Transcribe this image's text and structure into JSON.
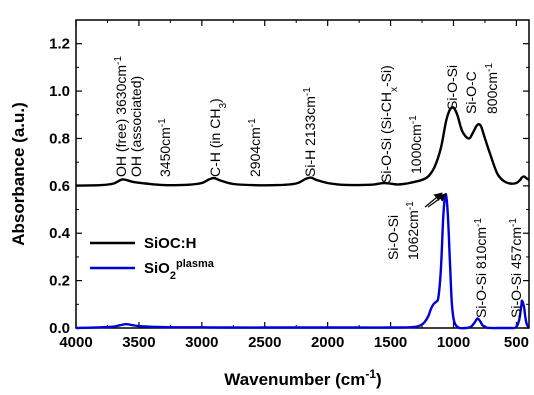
{
  "chart_data": {
    "type": "line",
    "title": "",
    "xlabel": "Wavenumber (cm",
    "xlabel_sup": "-1",
    "xlabel_end": ")",
    "ylabel": "Absorbance (a.u.)",
    "xlim": [
      4000,
      400
    ],
    "ylim": [
      0,
      1.3
    ],
    "x_ticks": [
      4000,
      3500,
      3000,
      2500,
      2000,
      1500,
      1000,
      500
    ],
    "y_ticks": [
      0.0,
      0.2,
      0.4,
      0.6,
      0.8,
      1.0,
      1.2
    ],
    "x_tick_labels": [
      "4000",
      "3500",
      "3000",
      "2500",
      "2000",
      "1500",
      "1000",
      "500"
    ],
    "y_tick_labels": [
      "0.0",
      "0.2",
      "0.4",
      "0.6",
      "0.8",
      "1.0",
      "1.2"
    ],
    "legend_position": "left",
    "series": [
      {
        "name": "SiOC:H",
        "name_sub": "",
        "name_sup": "",
        "color": "#000000",
        "x": [
          4000,
          3800,
          3700,
          3630,
          3550,
          3450,
          3300,
          3100,
          3000,
          2950,
          2904,
          2850,
          2750,
          2600,
          2400,
          2250,
          2180,
          2133,
          2090,
          2000,
          1900,
          1800,
          1650,
          1550,
          1450,
          1400,
          1350,
          1300,
          1250,
          1200,
          1150,
          1100,
          1060,
          1030,
          1000,
          970,
          930,
          880,
          850,
          820,
          800,
          780,
          750,
          700,
          650,
          600,
          550,
          500,
          470,
          457,
          440,
          420,
          400
        ],
        "y": [
          0.601,
          0.603,
          0.61,
          0.627,
          0.617,
          0.61,
          0.603,
          0.605,
          0.612,
          0.625,
          0.633,
          0.622,
          0.608,
          0.603,
          0.603,
          0.61,
          0.628,
          0.635,
          0.625,
          0.612,
          0.605,
          0.603,
          0.605,
          0.612,
          0.606,
          0.608,
          0.612,
          0.618,
          0.625,
          0.64,
          0.68,
          0.76,
          0.87,
          0.92,
          0.93,
          0.9,
          0.83,
          0.8,
          0.82,
          0.85,
          0.86,
          0.85,
          0.8,
          0.72,
          0.65,
          0.62,
          0.61,
          0.612,
          0.625,
          0.635,
          0.64,
          0.632,
          0.625
        ]
      },
      {
        "name": "SiO",
        "name_sub": "2",
        "name_sup": "plasma",
        "color": "#0000dd",
        "x": [
          4000,
          3800,
          3700,
          3650,
          3600,
          3550,
          3500,
          3400,
          3200,
          3000,
          2800,
          2500,
          2200,
          2000,
          1800,
          1500,
          1350,
          1300,
          1260,
          1230,
          1200,
          1180,
          1160,
          1140,
          1120,
          1100,
          1080,
          1062,
          1045,
          1030,
          1015,
          1000,
          980,
          950,
          900,
          860,
          830,
          810,
          790,
          770,
          740,
          700,
          650,
          600,
          550,
          520,
          500,
          480,
          470,
          460,
          457,
          450,
          440,
          430,
          420,
          410,
          400
        ],
        "y": [
          0.0,
          0.003,
          0.006,
          0.012,
          0.016,
          0.012,
          0.008,
          0.005,
          0.003,
          0.003,
          0.002,
          0.002,
          0.002,
          0.002,
          0.002,
          0.002,
          0.003,
          0.005,
          0.012,
          0.025,
          0.05,
          0.08,
          0.1,
          0.11,
          0.13,
          0.25,
          0.48,
          0.565,
          0.48,
          0.3,
          0.12,
          0.04,
          0.01,
          0.0,
          0.0,
          0.006,
          0.025,
          0.04,
          0.03,
          0.012,
          0.002,
          0.0,
          0.0,
          0.0,
          0.0,
          0.0,
          0.005,
          0.03,
          0.06,
          0.1,
          0.115,
          0.11,
          0.09,
          0.05,
          0.02,
          0.008,
          0.005
        ]
      }
    ],
    "annotations": [
      {
        "id": "oh-free",
        "parts": [
          [
            "",
            "OH (free) 3630cm"
          ],
          [
            "sup",
            "-1"
          ]
        ]
      },
      {
        "id": "oh-assoc",
        "parts": [
          [
            "",
            "OH (associated)"
          ]
        ]
      },
      {
        "id": "oh-3450",
        "parts": [
          [
            "",
            "3450cm"
          ],
          [
            "sup",
            "-1"
          ]
        ]
      },
      {
        "id": "ch",
        "parts": [
          [
            "",
            "C-H (in CH"
          ],
          [
            "sub",
            "3"
          ],
          [
            "",
            ")"
          ]
        ]
      },
      {
        "id": "ch-2904",
        "parts": [
          [
            "",
            "2904cm"
          ],
          [
            "sup",
            "-1"
          ]
        ]
      },
      {
        "id": "sih",
        "parts": [
          [
            "",
            "Si-H  2133cm"
          ],
          [
            "sup",
            "-1"
          ]
        ]
      },
      {
        "id": "siosi-ch",
        "parts": [
          [
            "",
            "Si-O-Si (Si-CH"
          ],
          [
            "sub",
            "x"
          ],
          [
            "",
            "-Si)"
          ]
        ]
      },
      {
        "id": "siosi-1000",
        "parts": [
          [
            "",
            "1000cm"
          ],
          [
            "sup",
            "-1"
          ]
        ]
      },
      {
        "id": "siosi-top",
        "parts": [
          [
            "",
            "Si-O-Si"
          ]
        ]
      },
      {
        "id": "sioc",
        "parts": [
          [
            "",
            "Si-O-C"
          ]
        ]
      },
      {
        "id": "sioc-800",
        "parts": [
          [
            "",
            "800cm"
          ],
          [
            "sup",
            "-1"
          ]
        ]
      },
      {
        "id": "siosi-blue",
        "parts": [
          [
            "",
            "Si-O-Si"
          ]
        ]
      },
      {
        "id": "siosi-1062",
        "parts": [
          [
            "",
            "1062cm"
          ],
          [
            "sup",
            "-1"
          ]
        ]
      },
      {
        "id": "siosi-810",
        "parts": [
          [
            "",
            "Si-O-Si 810cm"
          ],
          [
            "sup",
            "-1"
          ]
        ]
      },
      {
        "id": "siosi-457",
        "parts": [
          [
            "",
            "Si-O-Si 457cm"
          ],
          [
            "sup",
            "-1"
          ]
        ]
      }
    ]
  }
}
